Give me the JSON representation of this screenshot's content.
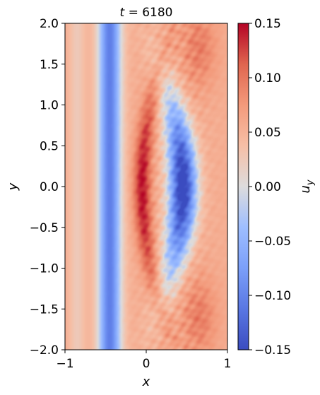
{
  "chart_data": {
    "type": "heatmap",
    "title_prefix": "t",
    "title_value": "6180",
    "xlabel": "x",
    "ylabel": "y",
    "xlim": [
      -1,
      1
    ],
    "ylim": [
      -2,
      2
    ],
    "x_ticks": [
      {
        "value": -1,
        "label": "−1"
      },
      {
        "value": 0,
        "label": "0"
      },
      {
        "value": 1,
        "label": "1"
      }
    ],
    "y_ticks": [
      {
        "value": 2.0,
        "label": "2.0"
      },
      {
        "value": 1.5,
        "label": "1.5"
      },
      {
        "value": 1.0,
        "label": "1.0"
      },
      {
        "value": 0.5,
        "label": "0.5"
      },
      {
        "value": 0.0,
        "label": "0.0"
      },
      {
        "value": -0.5,
        "label": "−0.5"
      },
      {
        "value": -1.0,
        "label": "−1.0"
      },
      {
        "value": -1.5,
        "label": "−1.5"
      },
      {
        "value": -2.0,
        "label": "−2.0"
      }
    ],
    "colorbar": {
      "label": "u",
      "label_subscript": "y",
      "colormap": "coolwarm",
      "range": [
        -0.15,
        0.15
      ],
      "ticks": [
        {
          "value": 0.15,
          "label": "0.15"
        },
        {
          "value": 0.1,
          "label": "0.10"
        },
        {
          "value": 0.05,
          "label": "0.05"
        },
        {
          "value": 0.0,
          "label": "0.00"
        },
        {
          "value": -0.05,
          "label": "−0.05"
        },
        {
          "value": -0.1,
          "label": "−0.10"
        },
        {
          "value": -0.15,
          "label": "−0.15"
        }
      ]
    },
    "field_features": [
      {
        "x": [
          -0.65,
          -0.25
        ],
        "y": [
          -2,
          2
        ],
        "value": -0.11
      },
      {
        "x": [
          0.2,
          0.65
        ],
        "y": [
          -0.9,
          0.9
        ],
        "value": -0.1
      },
      {
        "x": [
          -0.25,
          0.2
        ],
        "y": [
          -0.8,
          0.8
        ],
        "value": 0.12
      },
      {
        "x": [
          0.1,
          1.0
        ],
        "y": [
          1.0,
          2.0
        ],
        "value": 0.11
      },
      {
        "x": [
          0.1,
          1.0
        ],
        "y": [
          -2.0,
          -1.0
        ],
        "value": 0.11
      }
    ]
  }
}
